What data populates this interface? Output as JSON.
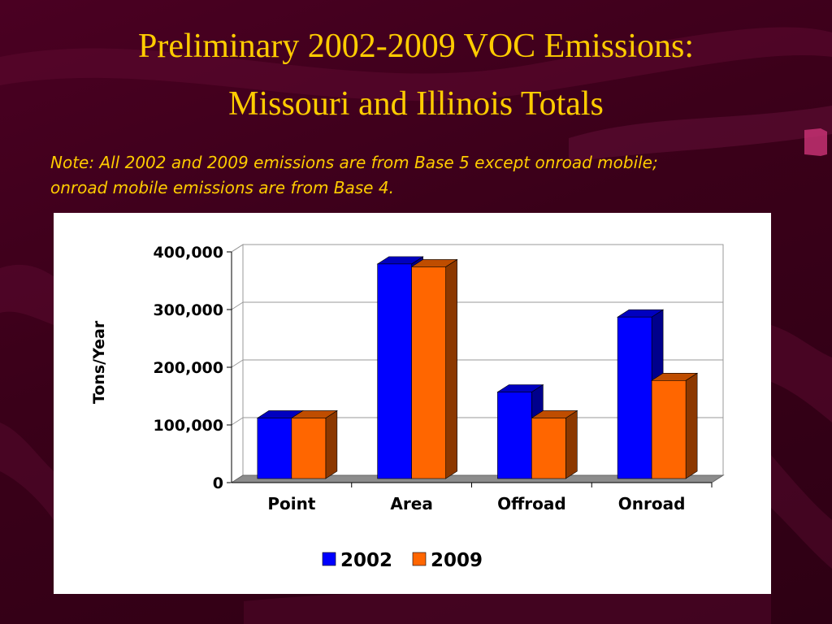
{
  "slide": {
    "title_line1": "Preliminary 2002-2009 VOC Emissions:",
    "title_line2": "Missouri and Illinois Totals",
    "note_line1": "Note:  All 2002 and 2009 emissions are from Base 5 except onroad mobile;",
    "note_line2": "onroad mobile emissions are from Base 4."
  },
  "colors": {
    "series_2002": "#0000ff",
    "series_2009": "#ff6600",
    "background": "#3a0019",
    "title": "#ffcc00"
  },
  "chart_data": {
    "type": "bar",
    "style": "3d-clustered",
    "title": "",
    "xlabel": "",
    "ylabel": "Tons/Year",
    "ylim": [
      0,
      400000
    ],
    "yticks": [
      0,
      100000,
      200000,
      300000,
      400000
    ],
    "ytick_labels": [
      "0",
      "100,000",
      "200,000",
      "300,000",
      "400,000"
    ],
    "grid": true,
    "legend": "bottom",
    "categories": [
      "Point",
      "Area",
      "Offroad",
      "Onroad"
    ],
    "series": [
      {
        "name": "2002",
        "values": [
          105000,
          372000,
          150000,
          280000
        ]
      },
      {
        "name": "2009",
        "values": [
          105000,
          367000,
          105000,
          170000
        ]
      }
    ]
  }
}
